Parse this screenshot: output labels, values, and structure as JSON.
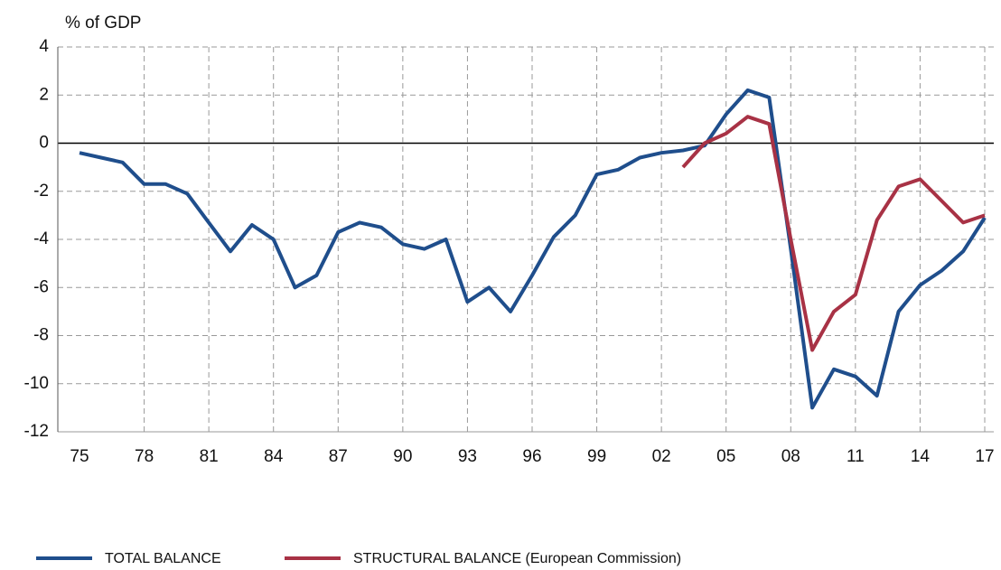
{
  "chart_data": {
    "type": "line",
    "y_label": "% of GDP",
    "categories": [
      "75",
      null,
      null,
      "78",
      null,
      null,
      "81",
      null,
      null,
      "84",
      null,
      null,
      "87",
      null,
      null,
      "90",
      null,
      null,
      "93",
      null,
      null,
      "96",
      null,
      null,
      "99",
      null,
      null,
      "02",
      null,
      null,
      "05",
      null,
      null,
      "08",
      null,
      null,
      "11",
      null,
      null,
      "14",
      null,
      null,
      "17"
    ],
    "series": [
      {
        "name": "TOTAL BALANCE",
        "color": "#1f4e8c",
        "values": [
          -0.4,
          -0.6,
          -0.8,
          -1.7,
          -1.7,
          -2.1,
          -3.3,
          -4.5,
          -3.4,
          -4.0,
          -6.0,
          -5.5,
          -3.7,
          -3.3,
          -3.5,
          -4.2,
          -4.4,
          -4.0,
          -6.6,
          -6.0,
          -7.0,
          -5.5,
          -3.9,
          -3.0,
          -1.3,
          -1.1,
          -0.6,
          -0.4,
          -0.3,
          -0.1,
          1.2,
          2.2,
          1.9,
          -4.4,
          -11.0,
          -9.4,
          -9.7,
          -10.5,
          -7.0,
          -5.9,
          -5.3,
          -4.5,
          -3.1
        ]
      },
      {
        "name": "STRUCTURAL BALANCE (European Commission)",
        "color": "#a83245",
        "values": [
          null,
          null,
          null,
          null,
          null,
          null,
          null,
          null,
          null,
          null,
          null,
          null,
          null,
          null,
          null,
          null,
          null,
          null,
          null,
          null,
          null,
          null,
          null,
          null,
          null,
          null,
          null,
          null,
          -1.0,
          0.0,
          0.4,
          1.1,
          0.8,
          -4.0,
          -8.6,
          -7.0,
          -6.3,
          -3.2,
          -1.8,
          -1.5,
          -2.4,
          -3.3,
          -3.0
        ]
      }
    ],
    "ylim": [
      -12,
      4
    ],
    "yticks": [
      -12,
      -10,
      -8,
      -6,
      -4,
      -2,
      0,
      2,
      4
    ],
    "grid": true
  }
}
